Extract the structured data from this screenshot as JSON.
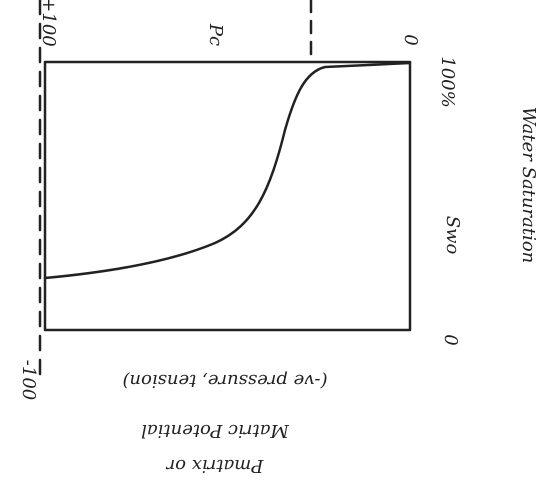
{
  "axis_top": {
    "max_label": "+100",
    "label": "Pc",
    "zero_label": "0"
  },
  "axis_right": {
    "max_label": "100%",
    "symbol": "Swo",
    "title": "Water Saturation",
    "zero_label": "0"
  },
  "axis_bottom": {
    "min_label": "-100",
    "note": "(-ve pressure, tension)",
    "title_line1": "Matric Potential",
    "title_line2": "Pmatrix or"
  }
}
